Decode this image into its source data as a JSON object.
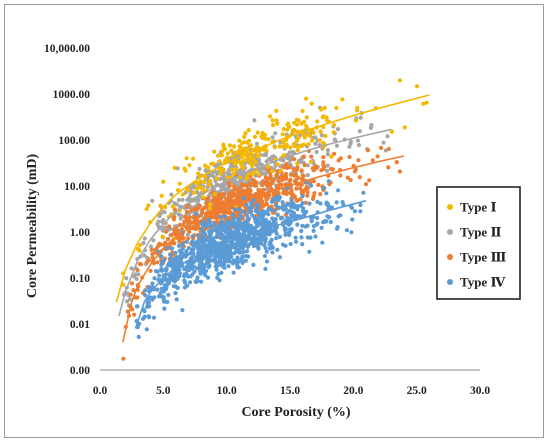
{
  "chart_data": {
    "type": "scatter",
    "title": "",
    "xlabel": "Core Porosity (%)",
    "ylabel": "Core Permeability (mD)",
    "xlim": [
      0,
      30
    ],
    "ylim": [
      0.001,
      10000
    ],
    "y_scale": "log",
    "x_ticks": [
      0,
      5,
      10,
      15,
      20,
      25,
      30
    ],
    "x_tick_labels": [
      "0.0",
      "5.0",
      "10.0",
      "15.0",
      "20.0",
      "25.0",
      "30.0"
    ],
    "y_ticks": [
      0.001,
      0.01,
      0.1,
      1,
      10,
      100,
      1000,
      10000
    ],
    "y_tick_labels": [
      "0.00",
      "0.01",
      "0.10",
      "1.00",
      "10.00",
      "100.00",
      "1000.00",
      "10,000.00"
    ],
    "grid": false,
    "legend_position": "right",
    "series": [
      {
        "name": "Type  Ⅰ",
        "color": "#f5b800",
        "x_range": [
          1.3,
          26
        ],
        "trend": {
          "x": [
            1.3,
            2,
            3,
            4,
            5,
            6,
            8,
            10,
            12,
            14,
            16,
            18,
            20,
            22,
            24,
            26
          ],
          "y": [
            0.03,
            0.15,
            0.6,
            1.6,
            3.5,
            6.5,
            16,
            32,
            55,
            95,
            150,
            230,
            340,
            490,
            680,
            950
          ]
        }
      },
      {
        "name": "Type  Ⅱ",
        "color": "#a6a6a6",
        "x_range": [
          1.5,
          23
        ],
        "trend": {
          "x": [
            1.5,
            2,
            3,
            4,
            5,
            6,
            8,
            10,
            12,
            14,
            16,
            18,
            20,
            23
          ],
          "y": [
            0.015,
            0.05,
            0.25,
            0.7,
            1.5,
            2.8,
            6.5,
            13,
            22,
            36,
            55,
            80,
            110,
            170
          ]
        }
      },
      {
        "name": "Type Ⅲ",
        "color": "#ed7d31",
        "x_range": [
          1.8,
          24
        ],
        "trend": {
          "x": [
            1.8,
            2.5,
            3,
            4,
            5,
            6,
            8,
            10,
            12,
            14,
            16,
            18,
            20,
            22,
            24
          ],
          "y": [
            0.004,
            0.03,
            0.07,
            0.2,
            0.45,
            0.8,
            1.8,
            3.3,
            5.5,
            8.5,
            12.5,
            18,
            25,
            34,
            45
          ]
        }
      },
      {
        "name": "Type Ⅳ",
        "color": "#5b9bd5",
        "x_range": [
          2.8,
          21
        ],
        "trend": {
          "x": [
            2.8,
            3.5,
            4,
            5,
            6,
            8,
            10,
            12,
            14,
            16,
            18,
            21
          ],
          "y": [
            0.008,
            0.03,
            0.05,
            0.1,
            0.17,
            0.35,
            0.6,
            0.95,
            1.4,
            2.0,
            2.9,
            4.8
          ]
        }
      }
    ]
  }
}
